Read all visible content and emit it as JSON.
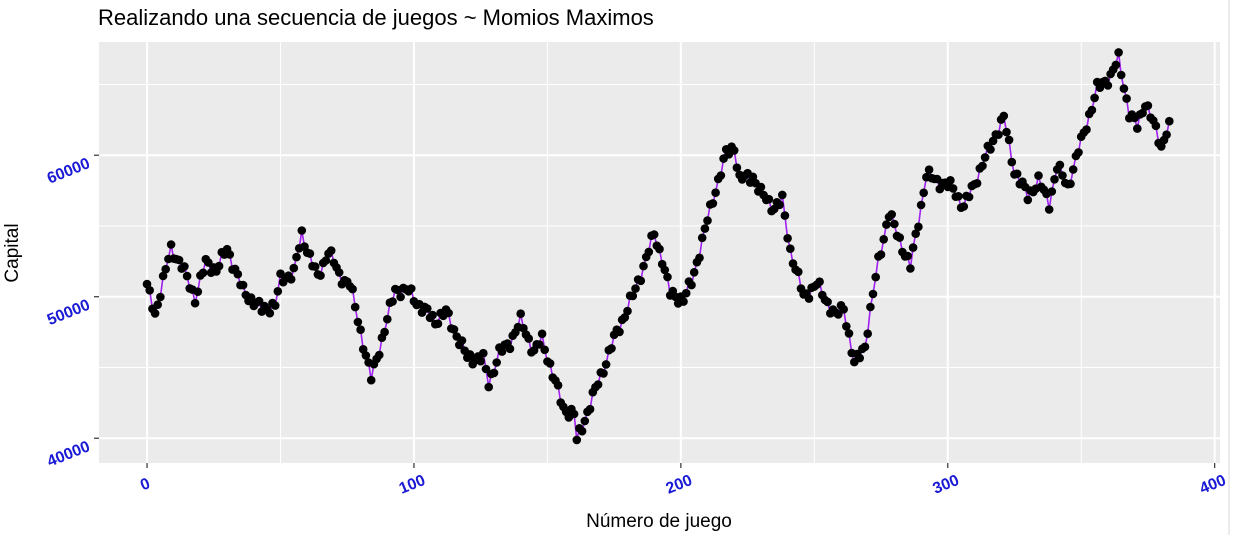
{
  "chart_data": {
    "type": "line",
    "title": "Realizando una secuencia de juegos ~ Momios Maximos",
    "xlabel": "Número de juego",
    "ylabel": "Capital",
    "xlim": [
      -18,
      402
    ],
    "ylim": [
      38250,
      68000
    ],
    "x_ticks": [
      0,
      100,
      200,
      300,
      400
    ],
    "x_tick_labels": [
      "0",
      "100",
      "200",
      "300",
      "400"
    ],
    "y_ticks": [
      40000,
      50000,
      60000
    ],
    "y_tick_labels": [
      "40000",
      "50000",
      "60000"
    ],
    "grid": true,
    "colors": {
      "line": "#a020f0",
      "points": "#000000",
      "panel": "#ebebeb",
      "tick_labels": "#1a1ad6"
    },
    "anchors": [
      [
        0,
        50700
      ],
      [
        3,
        48800
      ],
      [
        9,
        53400
      ],
      [
        13,
        52200
      ],
      [
        18,
        49900
      ],
      [
        22,
        52400
      ],
      [
        26,
        51900
      ],
      [
        30,
        53400
      ],
      [
        36,
        50400
      ],
      [
        43,
        49100
      ],
      [
        48,
        49400
      ],
      [
        50,
        51200
      ],
      [
        55,
        51700
      ],
      [
        58,
        54400
      ],
      [
        64,
        51300
      ],
      [
        68,
        53300
      ],
      [
        72,
        51500
      ],
      [
        76,
        50900
      ],
      [
        84,
        44200
      ],
      [
        93,
        50500
      ],
      [
        98,
        50400
      ],
      [
        102,
        49400
      ],
      [
        108,
        48300
      ],
      [
        112,
        48900
      ],
      [
        120,
        45700
      ],
      [
        126,
        45600
      ],
      [
        128,
        43900
      ],
      [
        132,
        46000
      ],
      [
        136,
        46800
      ],
      [
        140,
        48300
      ],
      [
        145,
        46100
      ],
      [
        148,
        47000
      ],
      [
        156,
        42100
      ],
      [
        160,
        41700
      ],
      [
        161,
        39800
      ],
      [
        175,
        47000
      ],
      [
        183,
        50500
      ],
      [
        190,
        54400
      ],
      [
        193,
        52700
      ],
      [
        196,
        50200
      ],
      [
        201,
        49800
      ],
      [
        204,
        51000
      ],
      [
        213,
        57600
      ],
      [
        217,
        60100
      ],
      [
        220,
        60600
      ],
      [
        222,
        58300
      ],
      [
        227,
        58500
      ],
      [
        230,
        57300
      ],
      [
        235,
        56300
      ],
      [
        238,
        56800
      ],
      [
        241,
        53300
      ],
      [
        246,
        50000
      ],
      [
        251,
        50900
      ],
      [
        258,
        48600
      ],
      [
        261,
        49300
      ],
      [
        265,
        45200
      ],
      [
        269,
        46600
      ],
      [
        274,
        52500
      ],
      [
        278,
        55900
      ],
      [
        286,
        52100
      ],
      [
        292,
        58600
      ],
      [
        298,
        58000
      ],
      [
        302,
        57700
      ],
      [
        306,
        56300
      ],
      [
        318,
        61500
      ],
      [
        321,
        62600
      ],
      [
        325,
        58900
      ],
      [
        330,
        57100
      ],
      [
        334,
        58200
      ],
      [
        338,
        56600
      ],
      [
        341,
        59200
      ],
      [
        345,
        57800
      ],
      [
        356,
        64700
      ],
      [
        361,
        65600
      ],
      [
        364,
        66800
      ],
      [
        368,
        63000
      ],
      [
        371,
        62000
      ],
      [
        374,
        63800
      ],
      [
        376,
        62800
      ],
      [
        380,
        60600
      ],
      [
        383,
        62400
      ]
    ]
  }
}
